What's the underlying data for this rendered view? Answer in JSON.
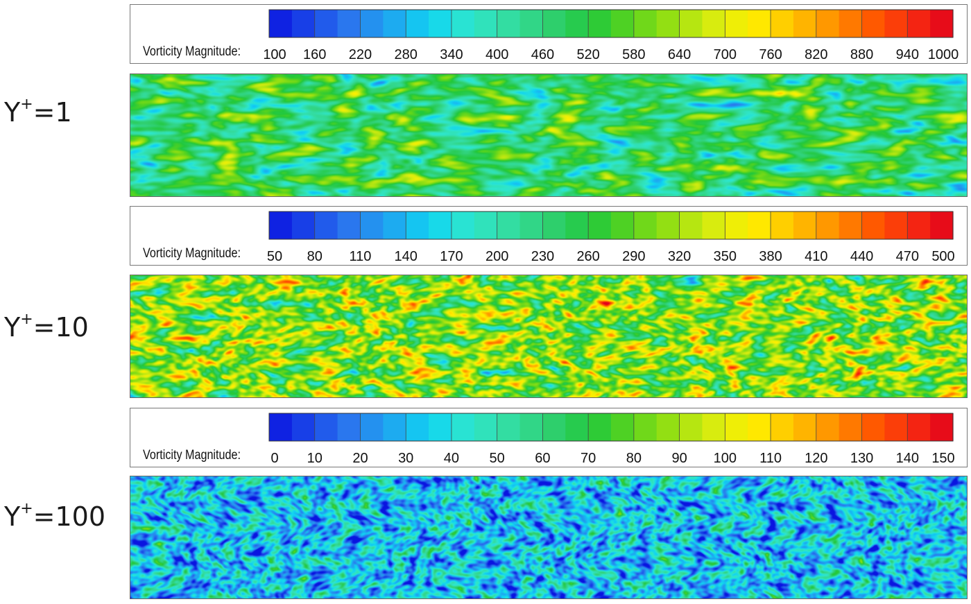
{
  "chart_data": [
    {
      "type": "heatmap",
      "panel_label": "Y+=1",
      "label_base": "Y",
      "label_sup": "+",
      "label_value": "=1",
      "colorbar_title": "Vorticity Magnitude:",
      "colorbar_min": 100,
      "colorbar_max": 1000,
      "colorbar_ticks": [
        "100",
        "160",
        "220",
        "280",
        "340",
        "400",
        "460",
        "520",
        "580",
        "640",
        "700",
        "760",
        "820",
        "880",
        "940",
        "1000"
      ],
      "colormap": "jet",
      "dominant_colors": [
        "#33cc88",
        "#66dd33",
        "#44ccdd"
      ]
    },
    {
      "type": "heatmap",
      "panel_label": "Y+=10",
      "label_base": "Y",
      "label_sup": "+",
      "label_value": "=10",
      "colorbar_title": "Vorticity Magnitude:",
      "colorbar_min": 50,
      "colorbar_max": 500,
      "colorbar_ticks": [
        "50",
        "80",
        "110",
        "140",
        "170",
        "200",
        "230",
        "260",
        "290",
        "320",
        "350",
        "380",
        "410",
        "440",
        "470",
        "500"
      ],
      "colormap": "jet",
      "dominant_colors": [
        "#88dd22",
        "#eedd11",
        "#33ccaa"
      ]
    },
    {
      "type": "heatmap",
      "panel_label": "Y+=100",
      "label_base": "Y",
      "label_sup": "+",
      "label_value": "=100",
      "colorbar_title": "Vorticity Magnitude:",
      "colorbar_min": 0,
      "colorbar_max": 150,
      "colorbar_ticks": [
        "0",
        "10",
        "20",
        "30",
        "40",
        "50",
        "60",
        "70",
        "80",
        "90",
        "100",
        "110",
        "120",
        "130",
        "140",
        "150"
      ],
      "colormap": "jet",
      "dominant_colors": [
        "#3399ee",
        "#22ccee",
        "#1155dd"
      ]
    }
  ],
  "colormap_stops": [
    "#0a14e0",
    "#1a46e8",
    "#2a78ee",
    "#1fa6f0",
    "#11d4f2",
    "#2ee6cc",
    "#33dca0",
    "#2fd070",
    "#22c83c",
    "#5ad41e",
    "#98e012",
    "#d6ec10",
    "#fff000",
    "#ffc400",
    "#ff9200",
    "#ff5a00",
    "#f82a10",
    "#e0001c"
  ]
}
